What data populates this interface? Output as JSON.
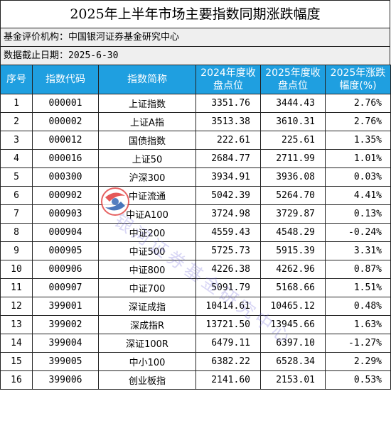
{
  "title": "2025年上半年市场主要指数同期涨跌幅度",
  "institution": "基金评价机构：中国银河证券基金研究中心",
  "date_line": "数据截止日期：2025-6-30",
  "headers": {
    "no": "序号",
    "code": "指数代码",
    "name": "指数简称",
    "close2024_a": "2024年度收",
    "close2024_b": "盘点位",
    "close2025_a": "2025年度收",
    "close2025_b": "盘点位",
    "change_a": "2025年涨跌",
    "change_b": "幅度(%)"
  },
  "rows": [
    {
      "no": "1",
      "code": "000001",
      "name": "上证指数",
      "c2024": "3351.76",
      "c2025": "3444.43",
      "chg": "2.76%"
    },
    {
      "no": "2",
      "code": "000002",
      "name": "上证A指",
      "c2024": "3513.38",
      "c2025": "3610.31",
      "chg": "2.76%"
    },
    {
      "no": "3",
      "code": "000012",
      "name": "国债指数",
      "c2024": "222.61",
      "c2025": "225.61",
      "chg": "1.35%"
    },
    {
      "no": "4",
      "code": "000016",
      "name": "上证50",
      "c2024": "2684.77",
      "c2025": "2711.99",
      "chg": "1.01%"
    },
    {
      "no": "5",
      "code": "000300",
      "name": "沪深300",
      "c2024": "3934.91",
      "c2025": "3936.08",
      "chg": "0.03%"
    },
    {
      "no": "6",
      "code": "000902",
      "name": "中证流通",
      "c2024": "5042.39",
      "c2025": "5264.70",
      "chg": "4.41%"
    },
    {
      "no": "7",
      "code": "000903",
      "name": "中证A100",
      "c2024": "3724.98",
      "c2025": "3729.87",
      "chg": "0.13%"
    },
    {
      "no": "8",
      "code": "000904",
      "name": "中证200",
      "c2024": "4559.43",
      "c2025": "4548.29",
      "chg": "-0.24%"
    },
    {
      "no": "9",
      "code": "000905",
      "name": "中证500",
      "c2024": "5725.73",
      "c2025": "5915.39",
      "chg": "3.31%"
    },
    {
      "no": "10",
      "code": "000906",
      "name": "中证800",
      "c2024": "4226.38",
      "c2025": "4262.96",
      "chg": "0.87%"
    },
    {
      "no": "11",
      "code": "000907",
      "name": "中证700",
      "c2024": "5091.79",
      "c2025": "5168.66",
      "chg": "1.51%"
    },
    {
      "no": "12",
      "code": "399001",
      "name": "深证成指",
      "c2024": "10414.61",
      "c2025": "10465.12",
      "chg": "0.48%"
    },
    {
      "no": "13",
      "code": "399002",
      "name": "深成指R",
      "c2024": "13721.50",
      "c2025": "13945.66",
      "chg": "1.63%"
    },
    {
      "no": "14",
      "code": "399004",
      "name": "深证100R",
      "c2024": "6479.11",
      "c2025": "6397.10",
      "chg": "-1.27%"
    },
    {
      "no": "15",
      "code": "399005",
      "name": "中小100",
      "c2024": "6382.22",
      "c2025": "6528.34",
      "chg": "2.29%"
    },
    {
      "no": "16",
      "code": "399006",
      "name": "创业板指",
      "c2024": "2141.60",
      "c2025": "2153.01",
      "chg": "0.53%"
    }
  ],
  "watermark": {
    "text": "银河证券基金研究中心",
    "logo_icon": "galaxy-securities-logo-icon",
    "colors": {
      "red": "#e03c3c",
      "blue": "#2a5fb0"
    }
  },
  "header_color": "#1f9fe0"
}
